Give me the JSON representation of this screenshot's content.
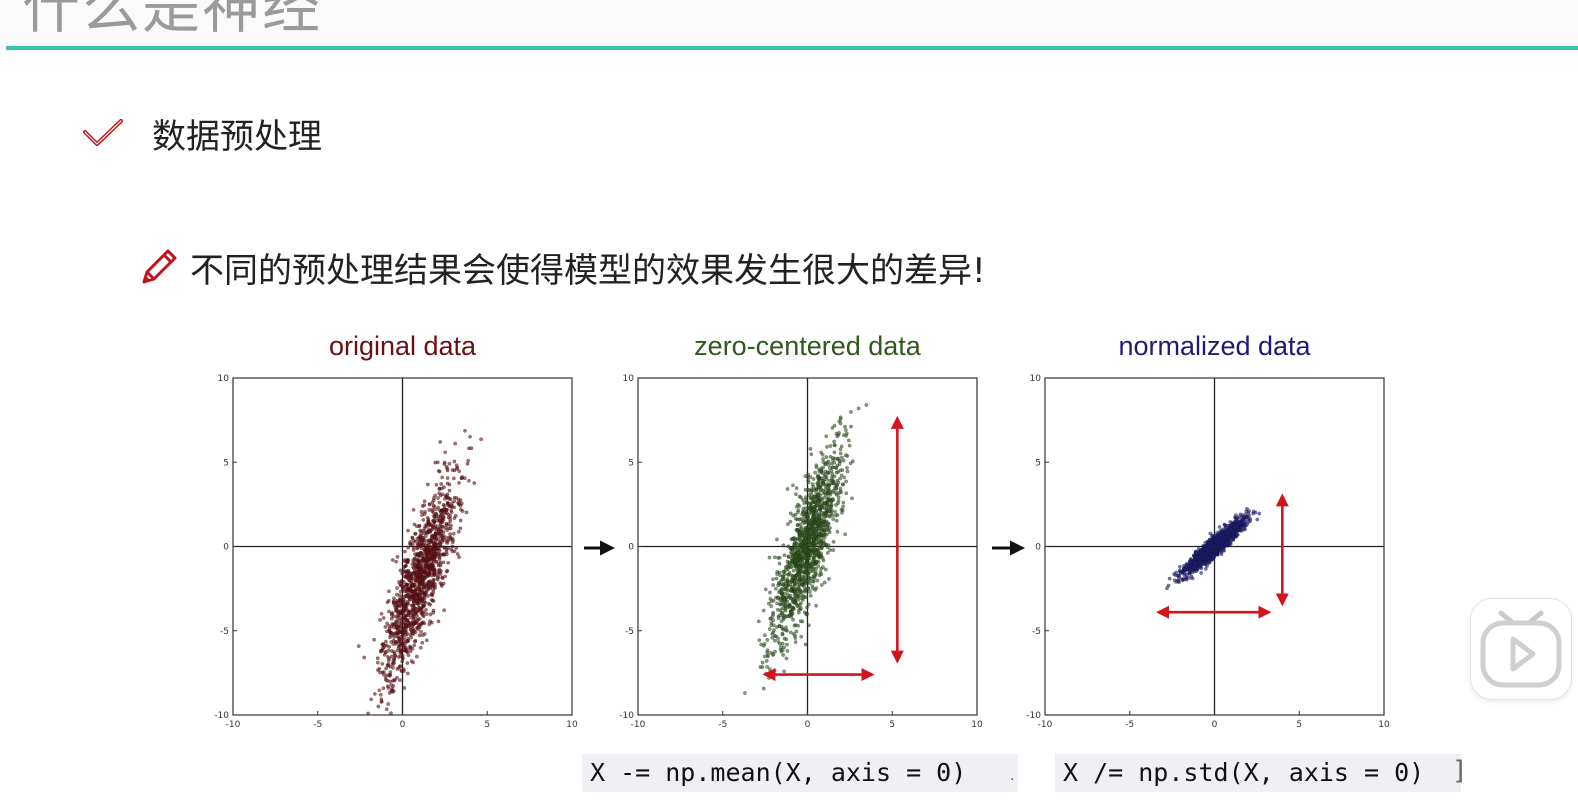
{
  "slide": {
    "partial_title": "什么是神经",
    "heading": "数据预处理",
    "subheading": "不同的预处理结果会使得模型的效果发生很大的差异!"
  },
  "colors": {
    "accent": "#3cc2b4",
    "check": "#c0141c",
    "arrow": "#d4141c",
    "original": "#6b0f12",
    "zero_centered": "#2e5a1c",
    "normalized": "#1c1c78"
  },
  "icons": {
    "heading_icon": "check-icon",
    "subheading_icon": "pencil-icon",
    "player": "play-icon"
  },
  "code": {
    "mean": "X -= np.mean(X, axis = 0)",
    "std": "X /= np.std(X, axis = 0)",
    "dot": ".",
    "bracket": "]"
  },
  "chart_data": [
    {
      "type": "scatter",
      "title": "original data",
      "xlim": [
        -10,
        10
      ],
      "ylim": [
        -10,
        10
      ],
      "xticks": [
        "-10",
        "-5",
        "0",
        "5",
        "10"
      ],
      "yticks": [
        "10",
        "5",
        "0",
        "-5",
        "-10"
      ],
      "center": [
        1.0,
        -2.0
      ],
      "spread_major": 3.0,
      "spread_minor": 0.6,
      "slope": 3.2,
      "n": 1300,
      "seed": 11,
      "color": "#6b0f12"
    },
    {
      "type": "scatter",
      "title": "zero-centered data",
      "xlim": [
        -10,
        10
      ],
      "ylim": [
        -10,
        10
      ],
      "xticks": [
        "-10",
        "-5",
        "0",
        "5",
        "10"
      ],
      "yticks": [
        "10",
        "5",
        "0",
        "-5",
        "-10"
      ],
      "center": [
        0.0,
        0.0
      ],
      "spread_major": 3.0,
      "spread_minor": 0.6,
      "slope": 3.2,
      "n": 1300,
      "seed": 23,
      "color": "#2e5a1c",
      "annotations": [
        {
          "kind": "double-arrow",
          "x1": -2.5,
          "y1": -7.6,
          "x2": 3.8,
          "y2": -7.6
        },
        {
          "kind": "double-arrow",
          "x1": 5.3,
          "y1": 7.6,
          "x2": 5.3,
          "y2": -6.8
        }
      ]
    },
    {
      "type": "scatter",
      "title": "normalized data",
      "xlim": [
        -10,
        10
      ],
      "ylim": [
        -10,
        10
      ],
      "xticks": [
        "-10",
        "-5",
        "0",
        "5",
        "10"
      ],
      "yticks": [
        "10",
        "5",
        "0",
        "-5",
        "-10"
      ],
      "center": [
        0.0,
        0.0
      ],
      "spread_major": 1.15,
      "spread_minor": 0.22,
      "slope": 0.9,
      "n": 1300,
      "seed": 37,
      "color": "#1c1c78",
      "annotations": [
        {
          "kind": "double-arrow",
          "x1": -3.3,
          "y1": -3.9,
          "x2": 3.2,
          "y2": -3.9
        },
        {
          "kind": "double-arrow",
          "x1": 4.0,
          "y1": 3.0,
          "x2": 4.0,
          "y2": -3.4
        }
      ]
    }
  ]
}
